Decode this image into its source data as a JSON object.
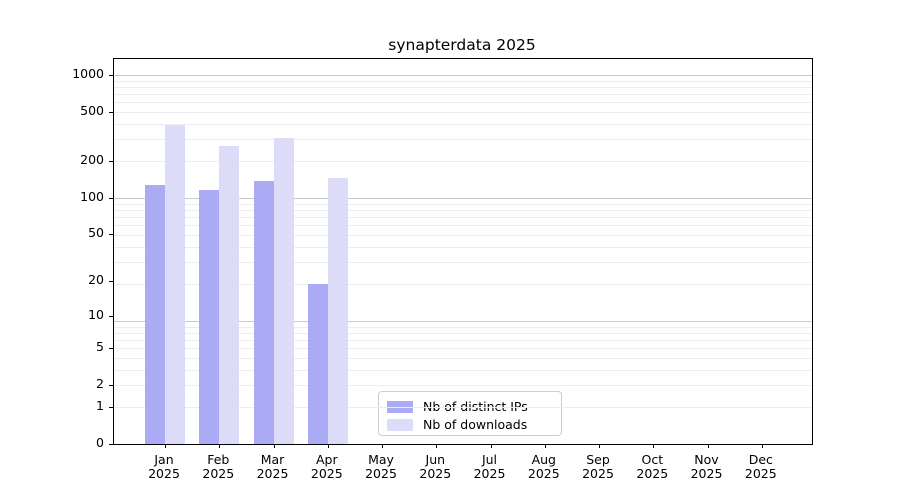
{
  "chart_data": {
    "type": "bar",
    "title": "synapterdata 2025",
    "year_label": "2025",
    "categories": [
      "Jan",
      "Feb",
      "Mar",
      "Apr",
      "May",
      "Jun",
      "Jul",
      "Aug",
      "Sep",
      "Oct",
      "Nov",
      "Dec"
    ],
    "series": [
      {
        "name": "Nb of distinct IPs",
        "color": "#aaaaf5",
        "values": [
          126,
          115,
          137,
          19,
          0,
          0,
          0,
          0,
          0,
          0,
          0,
          0
        ]
      },
      {
        "name": "Nb of downloads",
        "color": "#dcdcf8",
        "values": [
          393,
          262,
          306,
          146,
          0,
          0,
          0,
          0,
          0,
          0,
          0,
          0
        ]
      }
    ],
    "y_ticks": [
      0,
      1,
      2,
      5,
      10,
      20,
      50,
      100,
      200,
      500,
      1000
    ],
    "y_scale": "log10(1+v)",
    "ylim": [
      0,
      1350
    ],
    "grid": true,
    "legend_position": "lower center",
    "colors": {
      "axis": "#000000",
      "text": "#000000",
      "grid_minor": "#ededed",
      "grid_major": "#c9c9c9",
      "legend_border": "#cccccc",
      "background": "#ffffff"
    }
  }
}
